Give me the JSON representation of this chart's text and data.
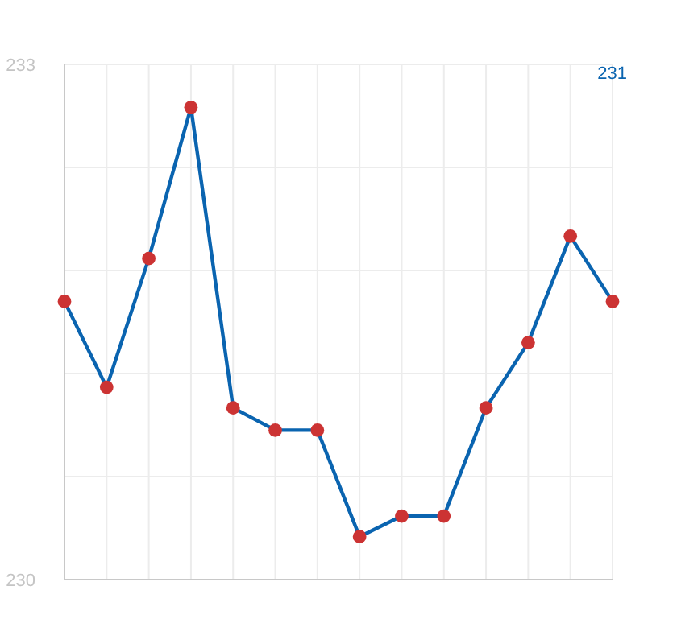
{
  "chart_data": {
    "type": "line",
    "categories": [
      null,
      null,
      null,
      null,
      null,
      null,
      null,
      null,
      null,
      null,
      null,
      null,
      null,
      null
    ],
    "ylim": [
      230,
      233
    ],
    "yticks": [
      230,
      {
        "value": 230.6,
        "label": null
      },
      {
        "value": 231.2,
        "label": null
      },
      {
        "value": 231.8,
        "label": null
      },
      {
        "value": 232.4,
        "label": null
      },
      233
    ],
    "series": [
      {
        "color": "#0a64b0",
        "colors": [
          "#cc3333",
          "#cc3333",
          "#cc3333",
          "#cc3333",
          "#cc3333",
          "#cc3333",
          "#cc3333",
          "#cc3333",
          "#cc3333",
          "#cc3333",
          "#cc3333",
          "#cc3333",
          "#cc3333",
          "#cc3333"
        ],
        "values": [
          231.62,
          231.12,
          231.87,
          232.75,
          231.0,
          230.87,
          230.87,
          230.25,
          230.37,
          230.37,
          231.0,
          231.38,
          232.0,
          231.62
        ]
      }
    ],
    "marker": "circle",
    "line_style": "solid",
    "grid": true,
    "tick_labels": "y",
    "annotations": [
      "231"
    ]
  }
}
